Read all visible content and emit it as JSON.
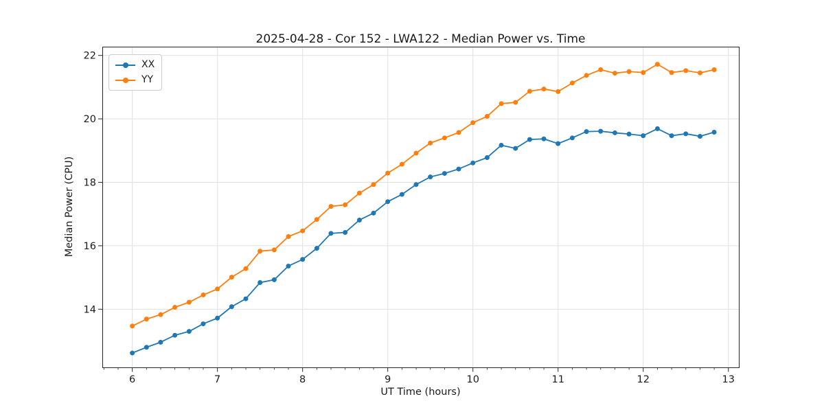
{
  "colors": {
    "background": "#ffffff",
    "grid": "#e0e0e0",
    "spine": "#262626",
    "tick": "#262626",
    "text": "#1a1a1a"
  },
  "legend": {
    "position": "upper left",
    "items": [
      "XX",
      "YY"
    ]
  },
  "chart_data": {
    "type": "line",
    "title": "2025-04-28 - Cor 152 - LWA122 - Median Power vs. Time",
    "xlabel": "UT Time (hours)",
    "ylabel": "Median Power (CPU)",
    "xlim": [
      5.648,
      13.123
    ],
    "ylim": [
      12.167,
      22.275
    ],
    "xticks": [
      6,
      7,
      8,
      9,
      10,
      11,
      12,
      13
    ],
    "yticks": [
      14,
      16,
      18,
      20,
      22
    ],
    "x_minor_tick_step": 0.16667,
    "grid": true,
    "legend_position": "upper left",
    "marker": "circle",
    "x": [
      6.0,
      6.167,
      6.333,
      6.5,
      6.667,
      6.833,
      7.0,
      7.167,
      7.333,
      7.5,
      7.667,
      7.833,
      8.0,
      8.167,
      8.333,
      8.5,
      8.667,
      8.833,
      9.0,
      9.167,
      9.333,
      9.5,
      9.667,
      9.833,
      10.0,
      10.167,
      10.333,
      10.5,
      10.667,
      10.833,
      11.0,
      11.167,
      11.333,
      11.5,
      11.667,
      11.833,
      12.0,
      12.167,
      12.333,
      12.5,
      12.667,
      12.833
    ],
    "series": [
      {
        "name": "XX",
        "color": "#1f77b4",
        "values": [
          12.62,
          12.8,
          12.96,
          13.18,
          13.3,
          13.54,
          13.72,
          14.08,
          14.33,
          14.84,
          14.93,
          15.36,
          15.57,
          15.92,
          16.39,
          16.42,
          16.81,
          17.03,
          17.39,
          17.62,
          17.93,
          18.17,
          18.28,
          18.42,
          18.61,
          18.78,
          19.17,
          19.07,
          19.35,
          19.37,
          19.22,
          19.4,
          19.6,
          19.61,
          19.56,
          19.52,
          19.47,
          19.69,
          19.47,
          19.53,
          19.45,
          19.58
        ]
      },
      {
        "name": "YY",
        "color": "#ff7f0e",
        "values": [
          13.47,
          13.69,
          13.83,
          14.06,
          14.22,
          14.45,
          14.64,
          15.01,
          15.28,
          15.83,
          15.87,
          16.29,
          16.47,
          16.83,
          17.24,
          17.29,
          17.66,
          17.93,
          18.29,
          18.57,
          18.92,
          19.24,
          19.4,
          19.57,
          19.88,
          20.08,
          20.48,
          20.52,
          20.87,
          20.94,
          20.86,
          21.13,
          21.37,
          21.55,
          21.44,
          21.49,
          21.46,
          21.72,
          21.46,
          21.52,
          21.45,
          21.55
        ]
      }
    ]
  }
}
